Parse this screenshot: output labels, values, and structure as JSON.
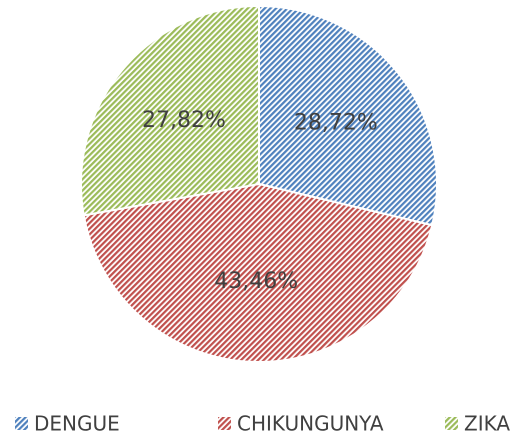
{
  "chart_data": {
    "type": "pie",
    "categories": [
      "DENGUE",
      "CHIKUNGUNYA",
      "ZIKA"
    ],
    "values": [
      28.72,
      43.46,
      27.82
    ],
    "value_labels": [
      "28,72%",
      "43,46%",
      "27,82%"
    ],
    "colors": [
      "#4f81bd",
      "#c0504d",
      "#9bbb59"
    ],
    "legend": "bottom"
  }
}
